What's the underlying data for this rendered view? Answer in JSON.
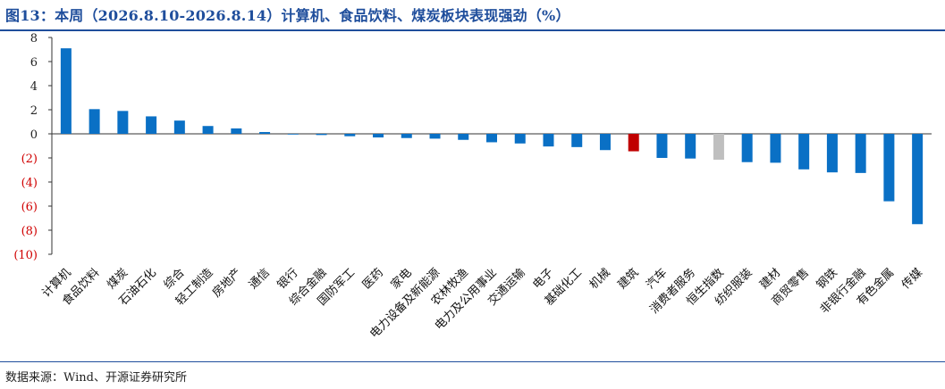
{
  "header": {
    "title": "图13：本周（2026.8.10-2026.8.14）计算机、食品饮料、煤炭板块表现强劲（%）"
  },
  "footer": {
    "source": "数据来源：Wind、开源证券研究所"
  },
  "colors": {
    "default_bar": "#0a70c5",
    "highlight_bar": "#c00000",
    "neutral_bar": "#bfbfbf",
    "negative_tick": "#d00000",
    "positive_tick": "#222222",
    "title": "#1f4e9c"
  },
  "chart_data": {
    "type": "bar",
    "title": "",
    "xlabel": "",
    "ylabel": "",
    "ylim": [
      -10,
      8
    ],
    "yticks": [
      8,
      6,
      4,
      2,
      0,
      -2,
      -4,
      -6,
      -8,
      -10
    ],
    "ytick_labels": [
      "8",
      "6",
      "4",
      "2",
      "0",
      "(2)",
      "(4)",
      "(6)",
      "(8)",
      "(10)"
    ],
    "grid": false,
    "legend": "none",
    "categories": [
      "计算机",
      "食品饮料",
      "煤炭",
      "石油石化",
      "综合",
      "轻工制造",
      "房地产",
      "通信",
      "银行",
      "综合金融",
      "国防军工",
      "医药",
      "家电",
      "电力设备及新能源",
      "农林牧渔",
      "电力及公用事业",
      "交通运输",
      "电子",
      "基础化工",
      "机械",
      "建筑",
      "汽车",
      "消费者服务",
      "恒生指数",
      "纺织服装",
      "建材",
      "商贸零售",
      "钢铁",
      "非银行金融",
      "有色金属",
      "传媒"
    ],
    "values": [
      7.1,
      2.05,
      1.9,
      1.45,
      1.1,
      0.65,
      0.45,
      0.15,
      -0.05,
      -0.1,
      -0.2,
      -0.3,
      -0.35,
      -0.4,
      -0.5,
      -0.7,
      -0.8,
      -1.05,
      -1.1,
      -1.35,
      -1.45,
      -2.0,
      -2.05,
      -2.15,
      -2.35,
      -2.4,
      -2.95,
      -3.2,
      -3.25,
      -5.6,
      -7.5
    ],
    "highlight": {
      "建筑": "highlight_bar",
      "恒生指数": "neutral_bar"
    }
  }
}
